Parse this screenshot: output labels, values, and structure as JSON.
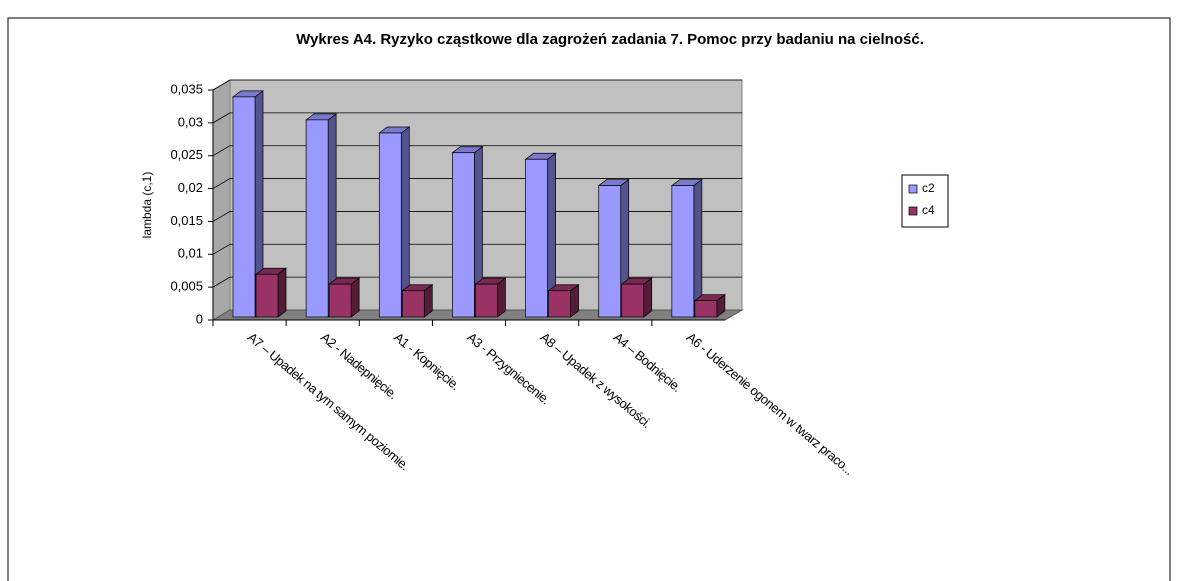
{
  "chart_data": {
    "type": "bar3d",
    "title": "Wykres A4. Ryzyko cząstkowe dla zagrożeń zadania 7. Pomoc przy badaniu na cielność.",
    "y_label": "lambda (c,1)",
    "categories": [
      "A7 – Upadek na tym samym poziomie.",
      "A2 - Nadepnięcie.",
      "A1 - Kopnięcie.",
      "A3 - Przygniecenie.",
      "A8 – Upadek z wysokości.",
      "A4 – Bodnięcie.",
      "A6 - Uderzenie ogonem w twarz praco..."
    ],
    "series": [
      {
        "name": "c2",
        "color": "#9999ff",
        "values": [
          0.0335,
          0.03,
          0.028,
          0.025,
          0.024,
          0.02,
          0.02
        ]
      },
      {
        "name": "c4",
        "color": "#993366",
        "values": [
          0.0065,
          0.005,
          0.004,
          0.005,
          0.004,
          0.005,
          0.0025
        ]
      }
    ],
    "ylim": [
      0,
      0.035
    ],
    "yticks": [
      0,
      {
        "value": 0.005,
        "label": "0,005"
      },
      {
        "value": 0.01,
        "label": "0,01"
      },
      {
        "value": 0.015,
        "label": "0,015"
      },
      {
        "value": 0.02,
        "label": "0,02"
      },
      {
        "value": 0.025,
        "label": "0,025"
      },
      {
        "value": 0.03,
        "label": "0,03"
      },
      {
        "value": 0.035,
        "label": "0,035"
      }
    ],
    "grid": true,
    "legend": "right"
  }
}
